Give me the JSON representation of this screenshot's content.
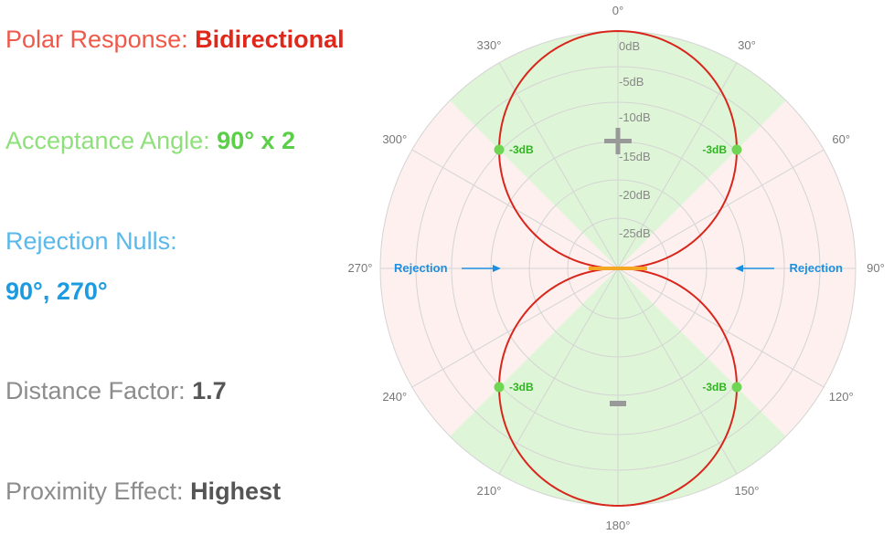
{
  "specs": {
    "polar_response": {
      "label": "Polar Response: ",
      "value": "Bidirectional",
      "color": "#f0584a",
      "value_color": "#e0271b"
    },
    "acceptance_angle": {
      "label": "Acceptance Angle: ",
      "value": "90° x 2",
      "color": "#8ee07a",
      "value_color": "#5bcf48"
    },
    "rejection_nulls": {
      "label": "Rejection Nulls:",
      "value": "90°, 270°",
      "color": "#5ab8ea",
      "value_color": "#1d9be0"
    },
    "distance_factor": {
      "label": "Distance Factor: ",
      "value": "1.7",
      "color": "#8c8c8c",
      "value_color": "#555555"
    },
    "proximity_effect": {
      "label": "Proximity Effect: ",
      "value": "Highest",
      "color": "#8c8c8c",
      "value_color": "#555555"
    }
  },
  "chart_data": {
    "type": "polar",
    "pattern": "figure-8",
    "pattern_color": "#d9261c",
    "null_color": "#f5a623",
    "angle_labels": [
      "0°",
      "30°",
      "60°",
      "90°",
      "120°",
      "150°",
      "180°",
      "210°",
      "240°",
      "270°",
      "300°",
      "330°"
    ],
    "db_labels": [
      "0dB",
      "-5dB",
      "-10dB",
      "-15dB",
      "-20dB",
      "-25dB"
    ],
    "acceptance_sectors_deg": [
      [
        -45,
        45
      ],
      [
        135,
        225
      ]
    ],
    "acceptance_color": "#dff5d8",
    "rejection_color": "#fdf0ef",
    "minus3db_points": {
      "angles_deg": [
        -45,
        45,
        135,
        225
      ],
      "labels": [
        "-3dB",
        "-3dB",
        "-3dB",
        "-3dB"
      ],
      "color": "#2fb51f",
      "dot_color": "#6fd654"
    },
    "rejection_labels": {
      "left": "Rejection",
      "right": "Rejection",
      "color": "#1d8fe0"
    },
    "front_symbol": "+",
    "rear_symbol": "-",
    "symbol_color": "#999999"
  }
}
